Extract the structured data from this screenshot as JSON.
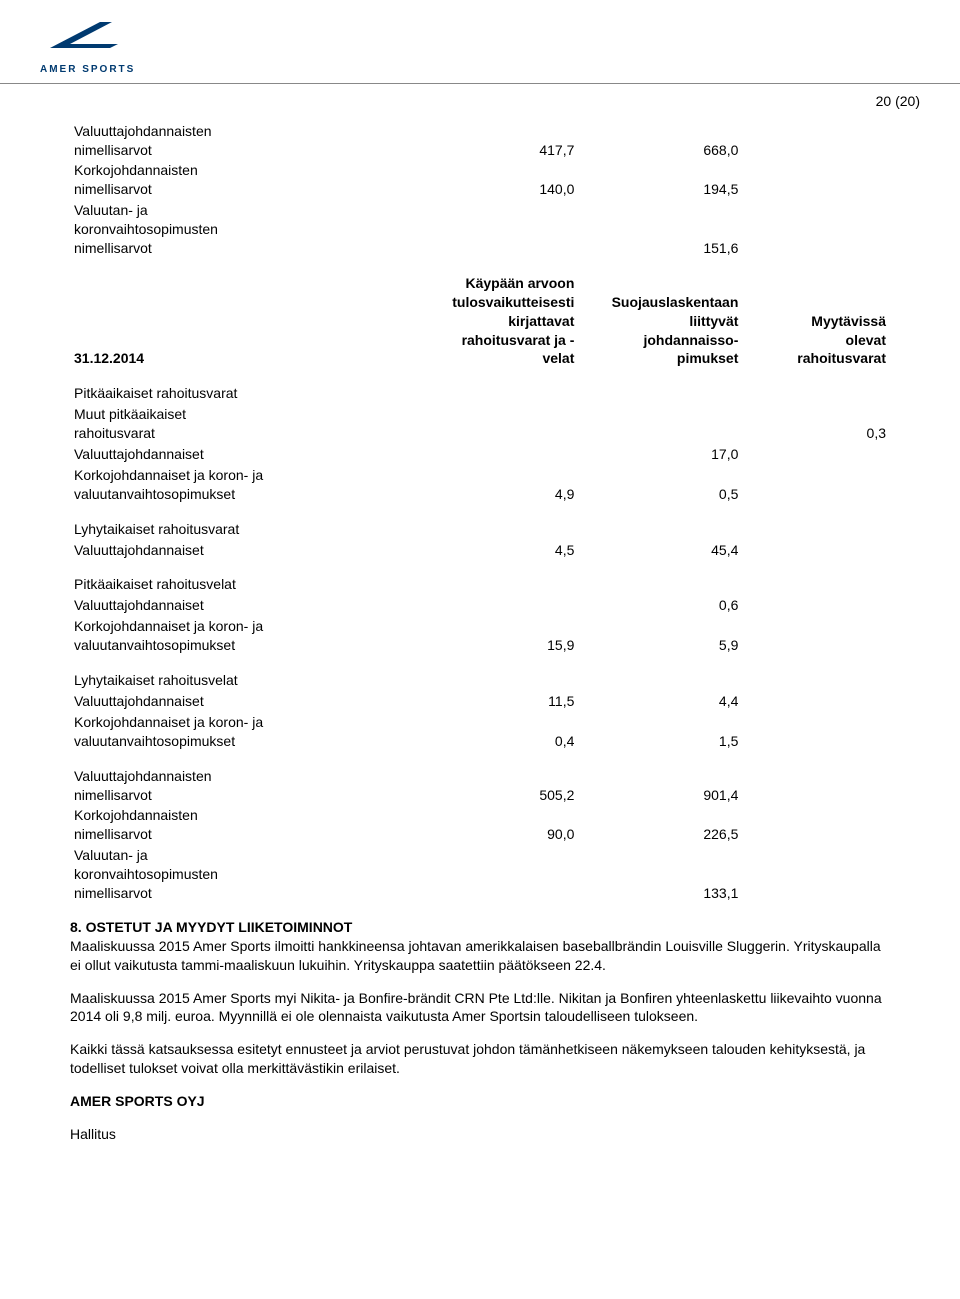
{
  "page_number": "20 (20)",
  "logo": {
    "brand": "AMER SPORTS",
    "fill": "#003a70"
  },
  "block1": {
    "rows": [
      {
        "label_lines": [
          "Valuuttajohdannaisten",
          "nimellisarvot"
        ],
        "c1": "417,7",
        "c2": "668,0"
      },
      {
        "label_lines": [
          "Korkojohdannaisten",
          "nimellisarvot"
        ],
        "c1": "140,0",
        "c2": "194,5"
      },
      {
        "label_lines": [
          "Valuutan- ja",
          "koronvaihtosopimusten",
          "nimellisarvot"
        ],
        "c1": "",
        "c2": "151,6"
      }
    ]
  },
  "header2": {
    "date": "31.12.2014",
    "col1_lines": [
      "Käypään arvoon",
      "tulosvaikutteisesti",
      "kirjattavat",
      "rahoitusvarat ja -",
      "velat"
    ],
    "col2_lines": [
      "Suojauslaskentaan",
      "liittyvät",
      "johdannaisso-",
      "pimukset"
    ],
    "col3_lines": [
      "Myytävissä",
      "olevat",
      "rahoitusvarat"
    ]
  },
  "block2": {
    "groups": [
      {
        "rows": [
          {
            "label": "Pitkäaikaiset rahoitusvarat",
            "c1": "",
            "c2": "",
            "c3": ""
          },
          {
            "label_lines": [
              "Muut pitkäaikaiset",
              "rahoitusvarat"
            ],
            "c1": "",
            "c2": "",
            "c3": "0,3"
          },
          {
            "label": "Valuuttajohdannaiset",
            "c1": "",
            "c2": "17,0",
            "c3": ""
          },
          {
            "label_lines": [
              "Korkojohdannaiset ja koron- ja",
              "valuutanvaihtosopimukset"
            ],
            "c1": "4,9",
            "c2": "0,5",
            "c3": ""
          }
        ]
      },
      {
        "rows": [
          {
            "label": "Lyhytaikaiset rahoitusvarat",
            "c1": "",
            "c2": "",
            "c3": ""
          },
          {
            "label": "Valuuttajohdannaiset",
            "c1": "4,5",
            "c2": "45,4",
            "c3": ""
          }
        ]
      },
      {
        "rows": [
          {
            "label": "Pitkäaikaiset rahoitusvelat",
            "c1": "",
            "c2": "",
            "c3": ""
          },
          {
            "label": "Valuuttajohdannaiset",
            "c1": "",
            "c2": "0,6",
            "c3": ""
          },
          {
            "label_lines": [
              "Korkojohdannaiset ja koron- ja",
              "valuutanvaihtosopimukset"
            ],
            "c1": "15,9",
            "c2": "5,9",
            "c3": ""
          }
        ]
      },
      {
        "rows": [
          {
            "label": "Lyhytaikaiset rahoitusvelat",
            "c1": "",
            "c2": "",
            "c3": ""
          },
          {
            "label": "Valuuttajohdannaiset",
            "c1": "11,5",
            "c2": "4,4",
            "c3": ""
          },
          {
            "label_lines": [
              "Korkojohdannaiset ja koron- ja",
              "valuutanvaihtosopimukset"
            ],
            "c1": "0,4",
            "c2": "1,5",
            "c3": ""
          }
        ]
      },
      {
        "rows": [
          {
            "label_lines": [
              "Valuuttajohdannaisten",
              "nimellisarvot"
            ],
            "c1": "505,2",
            "c2": "901,4",
            "c3": ""
          },
          {
            "label_lines": [
              "Korkojohdannaisten",
              "nimellisarvot"
            ],
            "c1": "90,0",
            "c2": "226,5",
            "c3": ""
          },
          {
            "label_lines": [
              "Valuutan- ja",
              "koronvaihtosopimusten",
              "nimellisarvot"
            ],
            "c1": "",
            "c2": "133,1",
            "c3": ""
          }
        ]
      }
    ]
  },
  "section8": {
    "title": "8. OSTETUT JA MYYDYT LIIKETOIMINNOT",
    "paragraphs": [
      "Maaliskuussa 2015 Amer Sports ilmoitti hankkineensa johtavan amerikkalaisen baseballbrändin Louisville Sluggerin. Yrityskaupalla ei ollut vaikutusta tammi-maaliskuun lukuihin. Yrityskauppa saatettiin päätökseen 22.4.",
      "Maaliskuussa 2015 Amer Sports myi Nikita- ja Bonfire-brändit CRN Pte Ltd:lle. Nikitan ja Bonfiren yhteenlaskettu liikevaihto vuonna 2014 oli 9,8 milj. euroa. Myynnillä ei ole olennaista vaikutusta Amer Sportsin taloudelliseen tulokseen.",
      "Kaikki tässä katsauksessa esitetyt ennusteet ja arviot perustuvat johdon tämänhetkiseen näkemykseen talouden kehityksestä, ja todelliset tulokset voivat olla merkittävästikin erilaiset."
    ],
    "company": "AMER SPORTS OYJ",
    "signoff": "Hallitus"
  }
}
